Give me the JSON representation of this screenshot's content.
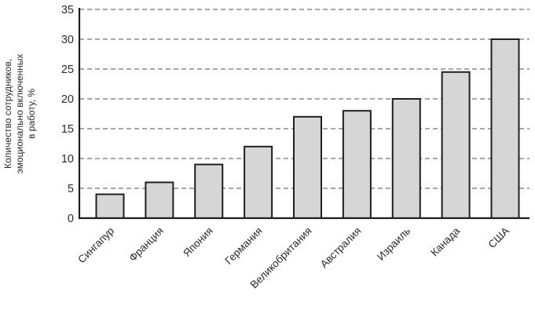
{
  "chart_data": {
    "type": "bar",
    "categories": [
      "Сингапур",
      "Франция",
      "Япония",
      "Германия",
      "Великобритания",
      "Австралия",
      "Израиль",
      "Канада",
      "США"
    ],
    "values": [
      4,
      6,
      9,
      12,
      17,
      18,
      20,
      24.5,
      30
    ],
    "title": "",
    "xlabel": "",
    "ylabel": "Количество сотрудников, эмоционально включенных в работу, %",
    "ylabel_lines": [
      "Количество сотрудников,",
      "эмоционально включенных",
      "в работу, %"
    ],
    "ylim": [
      0,
      35
    ],
    "yticks": [
      0,
      5,
      10,
      15,
      20,
      25,
      30,
      35
    ],
    "grid": "horizontal-dashed",
    "legend": "none",
    "colors": {
      "bar_fill": "#d6d6d6",
      "bar_stroke": "#1f1f1f",
      "grid_color": "#8a8a8a",
      "axis_color": "#1f1f1f",
      "text_color": "#2b2b2b"
    }
  }
}
